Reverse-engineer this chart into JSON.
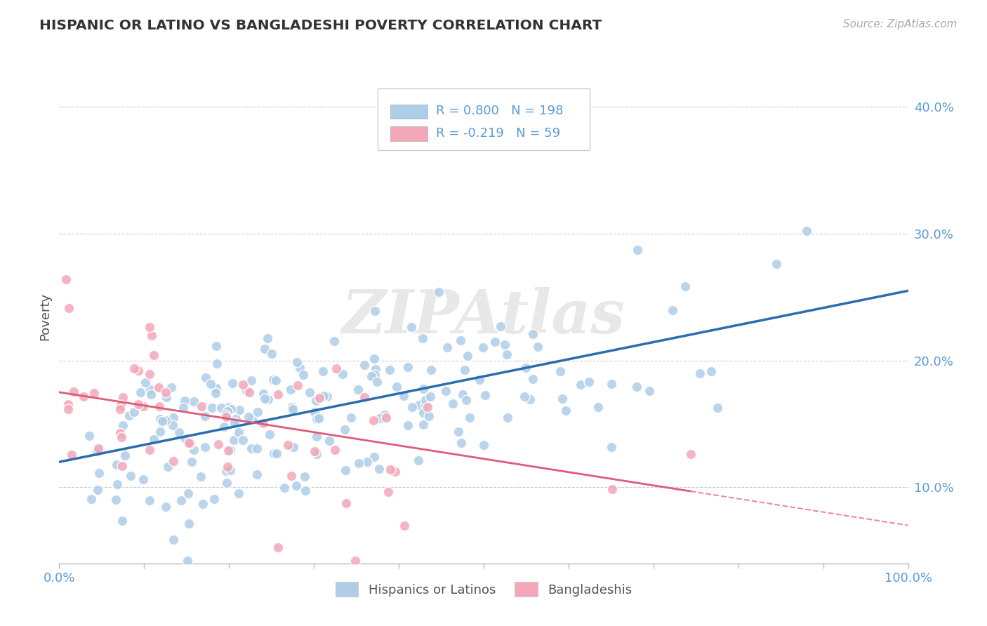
{
  "title": "HISPANIC OR LATINO VS BANGLADESHI POVERTY CORRELATION CHART",
  "source_text": "Source: ZipAtlas.com",
  "ylabel": "Poverty",
  "xlim": [
    0,
    1
  ],
  "ylim": [
    0.04,
    0.43
  ],
  "yticks": [
    0.1,
    0.2,
    0.3,
    0.4
  ],
  "bg_color": "#ffffff",
  "grid_color": "#cccccc",
  "blue_color": "#aecde8",
  "pink_color": "#f4a7b9",
  "blue_line_color": "#2b6cb0",
  "pink_line_color": "#e05a7a",
  "R_blue": 0.8,
  "N_blue": 198,
  "R_pink": -0.219,
  "N_pink": 59,
  "watermark": "ZIPAtlas",
  "legend_label_blue": "Hispanics or Latinos",
  "legend_label_pink": "Bangladeshis",
  "blue_intercept": 0.12,
  "blue_slope": 0.135,
  "pink_intercept": 0.175,
  "pink_slope": -0.105,
  "blue_noise_std": 0.032,
  "pink_noise_std": 0.042,
  "blue_seed": 42,
  "pink_seed": 7,
  "legend_R_N_color": "#5b9bd5",
  "yticklabel_color": "#5b9bd5",
  "xticklabel_color": "#5b9bd5"
}
